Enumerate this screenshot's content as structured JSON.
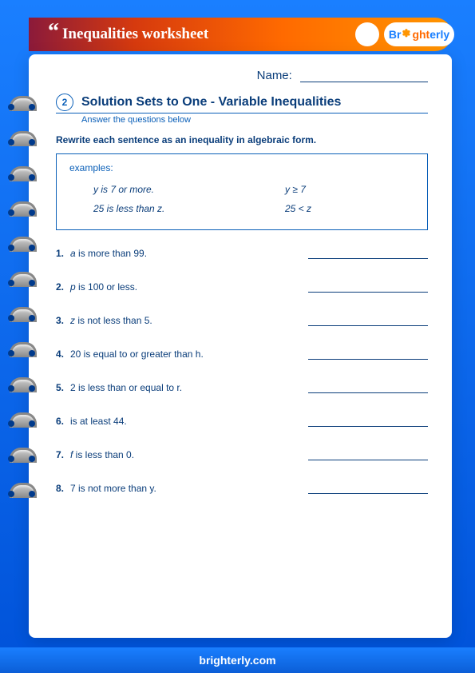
{
  "header": {
    "title": "Inequalities worksheet",
    "brand": "Brighterly"
  },
  "name_label": "Name:",
  "section": {
    "number": "2",
    "title": "Solution Sets to One - Variable Inequalities",
    "subtitle": "Answer the questions below"
  },
  "instruction": "Rewrite each sentence as an inequality in algebraic form.",
  "examples_label": "examples:",
  "examples": [
    {
      "text_pre": "y",
      "text_post": " is 7 or more.",
      "ans": "y ≥ 7"
    },
    {
      "text_pre": "",
      "text_post": "25 is less than z.",
      "ans": "25 < z"
    }
  ],
  "questions": [
    {
      "n": "1.",
      "var": "a",
      "rest": " is more than 99."
    },
    {
      "n": "2.",
      "var": "p",
      "rest": " is 100 or less."
    },
    {
      "n": "3.",
      "var": "z",
      "rest": " is not less than 5."
    },
    {
      "n": "4.",
      "var": "",
      "rest": "20 is equal to or greater than h."
    },
    {
      "n": "5.",
      "var": "",
      "rest": "2 is less than or equal to r."
    },
    {
      "n": "6.",
      "var": "",
      "rest": "  is at least 44."
    },
    {
      "n": "7.",
      "var": "f",
      "rest": " is less than 0."
    },
    {
      "n": "8.",
      "var": "",
      "rest": "7 is not more than y."
    }
  ],
  "footer": "brighterly.com",
  "colors": {
    "bg_top": "#1a7fff",
    "bg_bottom": "#0052d9",
    "accent_orange": "#ff6a00",
    "text_navy": "#0a3d7a",
    "rule_blue": "#0a5fb8"
  }
}
